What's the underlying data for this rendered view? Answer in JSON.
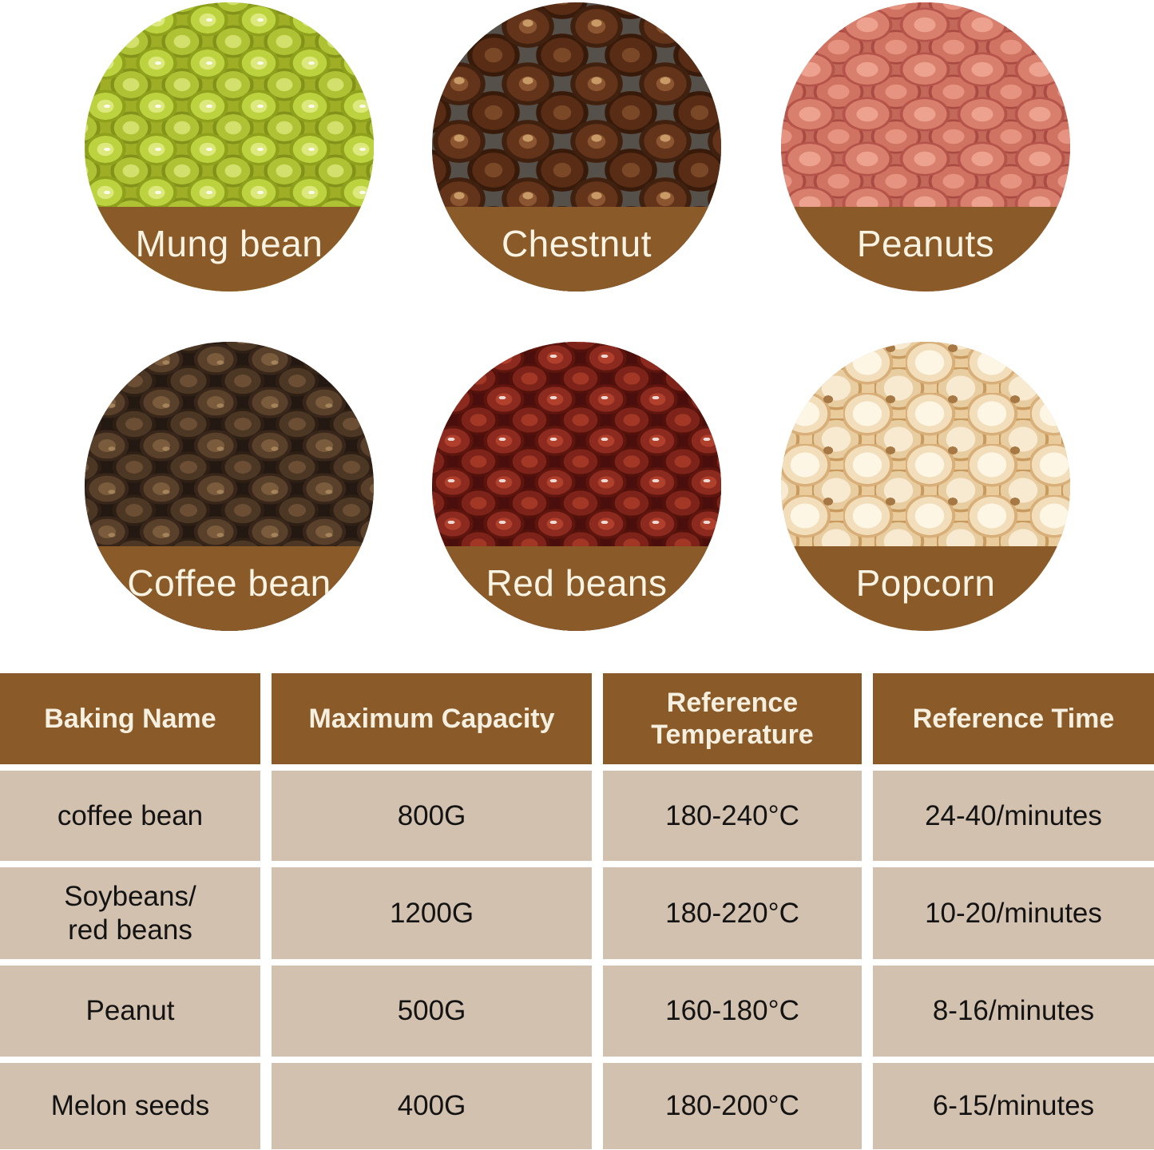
{
  "colors": {
    "band_brown": "#8a5a28",
    "header_brown": "#8a5a28",
    "cell_tan": "#d3c1af",
    "label_text": "#f8f3e3",
    "cell_text": "#131313",
    "background": "#ffffff"
  },
  "gallery": {
    "items": [
      {
        "id": "mung-bean",
        "label": "Mung bean"
      },
      {
        "id": "chestnut",
        "label": "Chestnut"
      },
      {
        "id": "peanuts",
        "label": "Peanuts"
      },
      {
        "id": "coffee-bean",
        "label": "Coffee bean"
      },
      {
        "id": "red-beans",
        "label": "Red beans"
      },
      {
        "id": "popcorn",
        "label": "Popcorn"
      }
    ]
  },
  "table": {
    "headers": [
      "Baking Name",
      "Maximum Capacity",
      "Reference\nTemperature",
      "Reference Time"
    ],
    "rows": [
      {
        "name": "coffee bean",
        "capacity": "800G",
        "temperature": "180-240°C",
        "time": "24-40/minutes"
      },
      {
        "name": "Soybeans/\nred beans",
        "capacity": "1200G",
        "temperature": "180-220°C",
        "time": "10-20/minutes"
      },
      {
        "name": "Peanut",
        "capacity": "500G",
        "temperature": "160-180°C",
        "time": "8-16/minutes"
      },
      {
        "name": "Melon seeds",
        "capacity": "400G",
        "temperature": "180-200°C",
        "time": "6-15/minutes"
      }
    ]
  }
}
